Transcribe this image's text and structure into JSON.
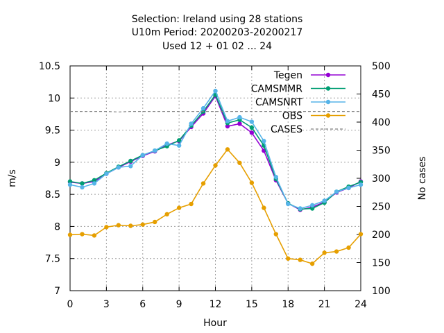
{
  "chart_data": {
    "type": "line",
    "title": [
      "Selection: Ireland using    28 stations",
      "U10m   Period: 20200203-20200217",
      "Used  12 + 01 02 ... 24"
    ],
    "xlabel": "Hour",
    "ylabel": "m/s",
    "y2label": "No cases",
    "xlim": [
      0,
      24
    ],
    "ylim": [
      7,
      10.5
    ],
    "y2lim": [
      100,
      500
    ],
    "xticks": [
      0,
      3,
      6,
      9,
      12,
      15,
      18,
      21,
      24
    ],
    "yticks": [
      7,
      7.5,
      8,
      8.5,
      9,
      9.5,
      10,
      10.5
    ],
    "y2ticks": [
      100,
      150,
      200,
      250,
      300,
      350,
      400,
      450,
      500
    ],
    "grid": true,
    "legend_position": "top-right",
    "x": [
      0,
      1,
      2,
      3,
      4,
      5,
      6,
      7,
      8,
      9,
      10,
      11,
      12,
      13,
      14,
      15,
      16,
      17,
      18,
      19,
      20,
      21,
      22,
      23,
      24
    ],
    "series": [
      {
        "name": "Tegen",
        "color": "#9400d3",
        "marker": "dot",
        "values": [
          8.69,
          8.67,
          8.7,
          8.82,
          8.92,
          9.01,
          9.1,
          9.17,
          9.27,
          9.33,
          9.55,
          9.76,
          10.03,
          9.56,
          9.6,
          9.46,
          9.18,
          8.72,
          8.36,
          8.26,
          8.3,
          8.38,
          8.53,
          8.6,
          8.7
        ]
      },
      {
        "name": "CAMSMMR",
        "color": "#009e73",
        "marker": "dot",
        "values": [
          8.7,
          8.67,
          8.72,
          8.83,
          8.93,
          9.02,
          9.11,
          9.18,
          9.25,
          9.34,
          9.57,
          9.79,
          10.05,
          9.61,
          9.66,
          9.54,
          9.26,
          8.74,
          8.36,
          8.27,
          8.28,
          8.37,
          8.54,
          8.62,
          8.69
        ]
      },
      {
        "name": "CAMSNRT",
        "color": "#56b4e9",
        "marker": "dot",
        "values": [
          8.65,
          8.61,
          8.67,
          8.82,
          8.92,
          8.94,
          9.11,
          9.18,
          9.29,
          9.26,
          9.6,
          9.84,
          10.11,
          9.64,
          9.7,
          9.63,
          9.33,
          8.77,
          8.35,
          8.28,
          8.33,
          8.4,
          8.54,
          8.6,
          8.65
        ]
      },
      {
        "name": "OBS",
        "color": "#e69f00",
        "marker": "dot",
        "values": [
          7.87,
          7.88,
          7.86,
          7.99,
          8.02,
          8.01,
          8.03,
          8.07,
          8.19,
          8.29,
          8.35,
          8.67,
          8.95,
          9.2,
          8.99,
          8.68,
          8.29,
          7.88,
          7.5,
          7.48,
          7.42,
          7.59,
          7.61,
          7.67,
          7.88
        ]
      },
      {
        "name": "CASES",
        "color": "#808080",
        "marker": "none",
        "axis": "y2",
        "dash": true,
        "values": [
          419,
          419,
          419,
          419,
          418,
          419,
          419,
          419,
          419,
          419,
          419,
          419,
          419,
          419,
          419,
          419,
          419,
          419,
          419,
          419,
          419,
          419,
          419,
          419,
          419
        ]
      }
    ]
  }
}
